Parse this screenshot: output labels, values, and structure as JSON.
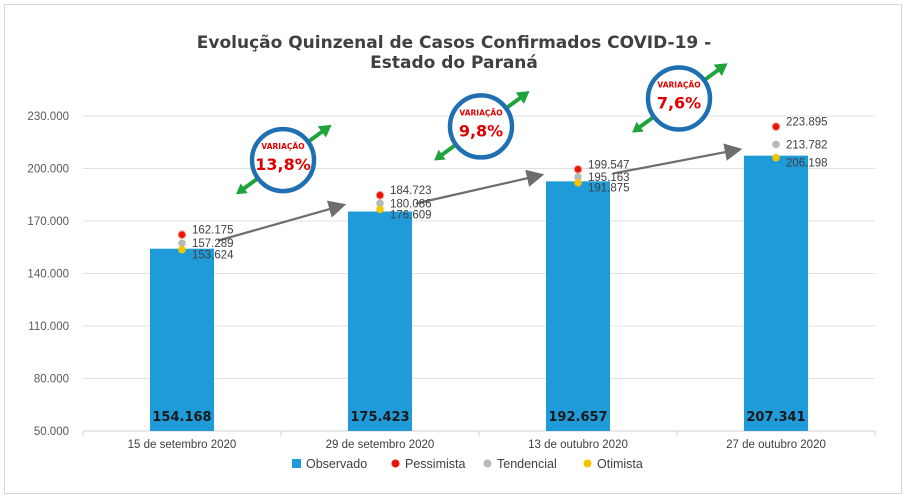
{
  "chart_data": {
    "type": "bar",
    "title_lines": [
      "Evolução Quinzenal de Casos Confirmados COVID-19 -",
      "Estado do Paraná"
    ],
    "categories": [
      "15 de setembro 2020",
      "29 de setembro 2020",
      "13 de outubro 2020",
      "27 de outubro 2020"
    ],
    "ylim": [
      50000,
      230000
    ],
    "yticks": [
      50000,
      80000,
      110000,
      140000,
      170000,
      200000,
      230000
    ],
    "ytick_labels": [
      "50.000",
      "80.000",
      "110.000",
      "140.000",
      "170.000",
      "200.000",
      "230.000"
    ],
    "series": [
      {
        "name": "Observado",
        "kind": "bar",
        "color": "#1f9bd9",
        "values": [
          154168,
          175423,
          192657,
          207341
        ],
        "labels": [
          "154.168",
          "175.423",
          "192.657",
          "207.341"
        ]
      },
      {
        "name": "Pessimista",
        "kind": "point",
        "color": "#e8150b",
        "values": [
          162175,
          184723,
          199547,
          223895
        ],
        "labels": [
          "162.175",
          "184.723",
          "199.547",
          "223.895"
        ]
      },
      {
        "name": "Tendencial",
        "kind": "point",
        "color": "#b9b9b9",
        "values": [
          157289,
          180086,
          195163,
          213782
        ],
        "labels": [
          "157.289",
          "180.086",
          "195.163",
          "213.782"
        ]
      },
      {
        "name": "Otimista",
        "kind": "point",
        "color": "#f5c400",
        "values": [
          153624,
          176609,
          191875,
          206198
        ],
        "labels": [
          "153.624",
          "176.609",
          "191.875",
          "206.198"
        ]
      }
    ],
    "variations": [
      {
        "label": "VARIAÇÃO",
        "value": "13,8%"
      },
      {
        "label": "VARIAÇÃO",
        "value": "9,8%"
      },
      {
        "label": "VARIAÇÃO",
        "value": "7,6%"
      }
    ],
    "legend_position": "bottom",
    "grid": true
  }
}
